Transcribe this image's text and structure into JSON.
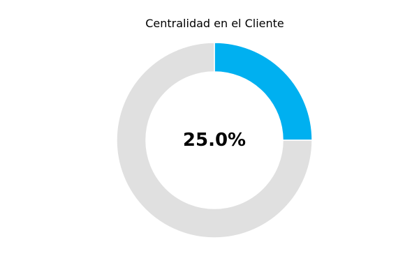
{
  "chart_data": {
    "type": "pie",
    "title": "Centralidad en el Cliente",
    "center_label": "25.0%",
    "slices": [
      {
        "label": "",
        "value": 25.0,
        "color": "#00b0f0"
      },
      {
        "label": "",
        "value": 75.0,
        "color": "#e0e0e0"
      }
    ],
    "donut": true,
    "start": "top",
    "direction": "clockwise",
    "legend": "none"
  }
}
